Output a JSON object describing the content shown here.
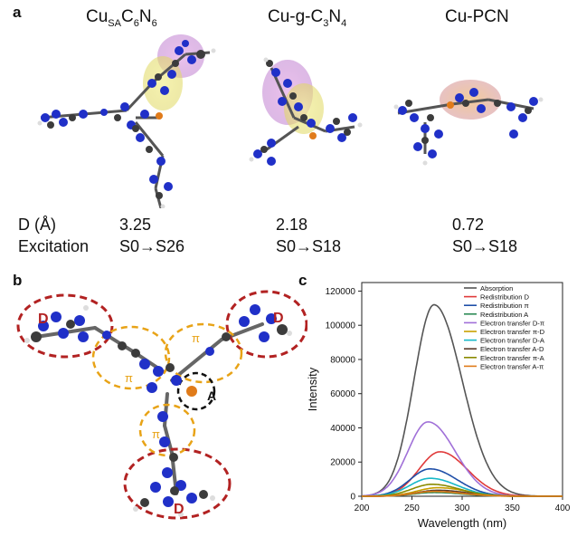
{
  "panel_a": {
    "letter": "a",
    "molecules": [
      {
        "title_main": "Cu",
        "title_sub": "SA",
        "title_rest": "C",
        "title_sub2": "6",
        "title_rest2": "N",
        "title_sub3": "6",
        "D": "3.25",
        "excitation": "S0→S26"
      },
      {
        "title_full": "Cu-g-C",
        "title_sub": "3",
        "title_rest": "N",
        "title_sub2": "4",
        "D": "2.18",
        "excitation": "S0→S18"
      },
      {
        "title_full": "Cu-PCN",
        "D": "0.72",
        "excitation": "S0→S18"
      }
    ],
    "row_labels": {
      "d": "D  (Å)",
      "excitation": "Excitation"
    }
  },
  "panel_b": {
    "letter": "b",
    "labels": {
      "donor": "D",
      "pi": "π",
      "acceptor": "A"
    }
  },
  "panel_c": {
    "letter": "c"
  },
  "colors": {
    "donor_ring": "#b22222",
    "pi_ring": "#e8a317",
    "acceptor_ring": "#111111",
    "cu_atom": "#e07b1a",
    "carbon": "#3c3c3c",
    "nitrogen": "#2030c8"
  },
  "chart_data": {
    "type": "line",
    "xlabel": "Wavelength (nm)",
    "ylabel": "Intensity",
    "xlim": [
      200,
      400
    ],
    "ylim": [
      0,
      125000
    ],
    "x_ticks": [
      200,
      250,
      300,
      350,
      400
    ],
    "y_ticks": [
      0,
      20000,
      40000,
      60000,
      80000,
      100000,
      120000
    ],
    "legend_position": "top-right",
    "grid": false,
    "series": [
      {
        "name": "Absorption",
        "color": "#555555",
        "peak_x": 272,
        "peak_y": 112000,
        "sigma_left": 20,
        "sigma_right": 28
      },
      {
        "name": "Redistribution D",
        "color": "#e03a3a",
        "peak_x": 278,
        "peak_y": 26000,
        "sigma_left": 21,
        "sigma_right": 27
      },
      {
        "name": "Redistribution π",
        "color": "#1f4fa8",
        "peak_x": 268,
        "peak_y": 16000,
        "sigma_left": 20,
        "sigma_right": 27
      },
      {
        "name": "Redistribution A",
        "color": "#2e8b57",
        "peak_x": 272,
        "peak_y": 2200,
        "sigma_left": 20,
        "sigma_right": 28
      },
      {
        "name": "Electron transfer D-π",
        "color": "#a070d8",
        "peak_x": 266,
        "peak_y": 43500,
        "sigma_left": 20,
        "sigma_right": 27
      },
      {
        "name": "Electron transfer π-D",
        "color": "#c9a000",
        "peak_x": 276,
        "peak_y": 5000,
        "sigma_left": 21,
        "sigma_right": 28
      },
      {
        "name": "Electron transfer D-A",
        "color": "#17b8c8",
        "peak_x": 268,
        "peak_y": 10500,
        "sigma_left": 20,
        "sigma_right": 27
      },
      {
        "name": "Electron transfer A-D",
        "color": "#5a3a2a",
        "peak_x": 276,
        "peak_y": 3500,
        "sigma_left": 21,
        "sigma_right": 28
      },
      {
        "name": "Electron transfer π-A",
        "color": "#8a8a00",
        "peak_x": 270,
        "peak_y": 7000,
        "sigma_left": 20,
        "sigma_right": 27
      },
      {
        "name": "Electron transfer A-π",
        "color": "#e07b1a",
        "peak_x": 272,
        "peak_y": 2800,
        "sigma_left": 20,
        "sigma_right": 28
      }
    ]
  }
}
